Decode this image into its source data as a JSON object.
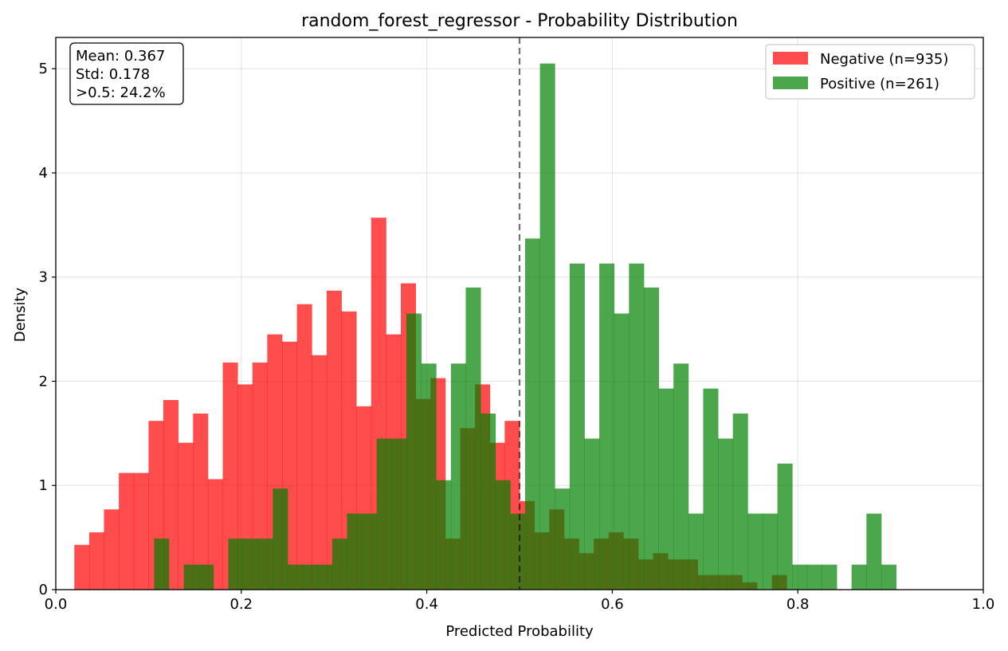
{
  "chart_data": {
    "type": "histogram",
    "title": "random_forest_regressor - Probability Distribution",
    "xlabel": "Predicted Probability",
    "ylabel": "Density",
    "xlim": [
      0.0,
      1.0
    ],
    "ylim": [
      0,
      5.3
    ],
    "x_ticks": [
      "0.0",
      "0.2",
      "0.4",
      "0.6",
      "0.8",
      "1.0"
    ],
    "y_ticks": [
      "0",
      "1",
      "2",
      "3",
      "4",
      "5"
    ],
    "grid": true,
    "legend_position": "top-right",
    "threshold": 0.5,
    "stats_box": {
      "lines": [
        "Mean: 0.367",
        "Std: 0.178",
        ">0.5: 24.2%"
      ]
    },
    "series": [
      {
        "name": "Negative (n=935)",
        "color": "#ff0000",
        "bins": [
          [
            0.02,
            0.036,
            0.43
          ],
          [
            0.036,
            0.052,
            0.55
          ],
          [
            0.052,
            0.068,
            0.77
          ],
          [
            0.068,
            0.084,
            1.12
          ],
          [
            0.084,
            0.1,
            1.12
          ],
          [
            0.1,
            0.116,
            1.62
          ],
          [
            0.116,
            0.132,
            1.82
          ],
          [
            0.132,
            0.148,
            1.41
          ],
          [
            0.148,
            0.164,
            1.69
          ],
          [
            0.164,
            0.18,
            1.06
          ],
          [
            0.18,
            0.196,
            2.18
          ],
          [
            0.196,
            0.212,
            1.97
          ],
          [
            0.212,
            0.228,
            2.18
          ],
          [
            0.228,
            0.244,
            2.45
          ],
          [
            0.244,
            0.26,
            2.38
          ],
          [
            0.26,
            0.276,
            2.74
          ],
          [
            0.276,
            0.292,
            2.25
          ],
          [
            0.292,
            0.308,
            2.87
          ],
          [
            0.308,
            0.324,
            2.67
          ],
          [
            0.324,
            0.34,
            1.76
          ],
          [
            0.34,
            0.356,
            3.57
          ],
          [
            0.356,
            0.372,
            2.45
          ],
          [
            0.372,
            0.388,
            2.94
          ],
          [
            0.388,
            0.404,
            1.83
          ],
          [
            0.404,
            0.42,
            2.03
          ],
          [
            0.42,
            0.436,
            0.49
          ],
          [
            0.436,
            0.452,
            1.55
          ],
          [
            0.452,
            0.468,
            1.97
          ],
          [
            0.468,
            0.484,
            1.41
          ],
          [
            0.484,
            0.5,
            1.62
          ],
          [
            0.5,
            0.516,
            0.85
          ],
          [
            0.516,
            0.532,
            0.55
          ],
          [
            0.532,
            0.548,
            0.77
          ],
          [
            0.548,
            0.564,
            0.49
          ],
          [
            0.564,
            0.58,
            0.35
          ],
          [
            0.58,
            0.596,
            0.49
          ],
          [
            0.596,
            0.612,
            0.55
          ],
          [
            0.612,
            0.628,
            0.49
          ],
          [
            0.628,
            0.644,
            0.29
          ],
          [
            0.644,
            0.66,
            0.35
          ],
          [
            0.66,
            0.676,
            0.29
          ],
          [
            0.676,
            0.692,
            0.29
          ],
          [
            0.692,
            0.708,
            0.14
          ],
          [
            0.708,
            0.724,
            0.14
          ],
          [
            0.724,
            0.74,
            0.14
          ],
          [
            0.74,
            0.756,
            0.07
          ],
          [
            0.756,
            0.772,
            0.0
          ],
          [
            0.772,
            0.788,
            0.14
          ]
        ]
      },
      {
        "name": "Positive (n=261)",
        "color": "#008000",
        "bins": [
          [
            0.106,
            0.122,
            0.49
          ],
          [
            0.122,
            0.138,
            0.0
          ],
          [
            0.138,
            0.154,
            0.24
          ],
          [
            0.154,
            0.17,
            0.24
          ],
          [
            0.17,
            0.186,
            0.0
          ],
          [
            0.186,
            0.202,
            0.49
          ],
          [
            0.202,
            0.218,
            0.49
          ],
          [
            0.218,
            0.234,
            0.49
          ],
          [
            0.234,
            0.25,
            0.97
          ],
          [
            0.25,
            0.266,
            0.24
          ],
          [
            0.266,
            0.282,
            0.24
          ],
          [
            0.282,
            0.298,
            0.24
          ],
          [
            0.298,
            0.314,
            0.49
          ],
          [
            0.314,
            0.33,
            0.73
          ],
          [
            0.33,
            0.346,
            0.73
          ],
          [
            0.346,
            0.362,
            1.45
          ],
          [
            0.362,
            0.378,
            1.45
          ],
          [
            0.378,
            0.394,
            2.65
          ],
          [
            0.394,
            0.41,
            2.17
          ],
          [
            0.41,
            0.426,
            1.05
          ],
          [
            0.426,
            0.442,
            2.17
          ],
          [
            0.442,
            0.458,
            2.9
          ],
          [
            0.458,
            0.474,
            1.69
          ],
          [
            0.474,
            0.49,
            1.05
          ],
          [
            0.49,
            0.506,
            0.73
          ],
          [
            0.506,
            0.522,
            3.37
          ],
          [
            0.522,
            0.538,
            5.05
          ],
          [
            0.538,
            0.554,
            0.97
          ],
          [
            0.554,
            0.57,
            3.13
          ],
          [
            0.57,
            0.586,
            1.45
          ],
          [
            0.586,
            0.602,
            3.13
          ],
          [
            0.602,
            0.618,
            2.65
          ],
          [
            0.618,
            0.634,
            3.13
          ],
          [
            0.634,
            0.65,
            2.9
          ],
          [
            0.65,
            0.666,
            1.93
          ],
          [
            0.666,
            0.682,
            2.17
          ],
          [
            0.682,
            0.698,
            0.73
          ],
          [
            0.698,
            0.714,
            1.93
          ],
          [
            0.714,
            0.73,
            1.45
          ],
          [
            0.73,
            0.746,
            1.69
          ],
          [
            0.746,
            0.762,
            0.73
          ],
          [
            0.762,
            0.778,
            0.73
          ],
          [
            0.778,
            0.794,
            1.21
          ],
          [
            0.794,
            0.81,
            0.24
          ],
          [
            0.81,
            0.826,
            0.24
          ],
          [
            0.826,
            0.842,
            0.24
          ],
          [
            0.842,
            0.858,
            0.0
          ],
          [
            0.858,
            0.874,
            0.24
          ],
          [
            0.874,
            0.89,
            0.73
          ],
          [
            0.89,
            0.906,
            0.24
          ]
        ]
      }
    ]
  }
}
